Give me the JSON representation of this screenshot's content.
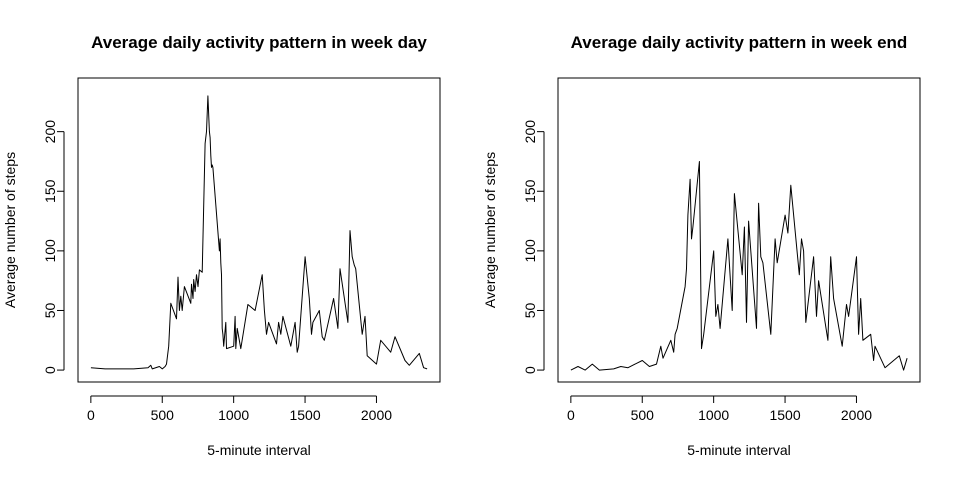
{
  "chart_data": [
    {
      "type": "line",
      "title": "Average daily activity pattern in week day",
      "xlabel": "5-minute interval",
      "ylabel": "Average number of steps",
      "xlim": [
        -90,
        2445
      ],
      "ylim": [
        -10,
        245
      ],
      "xticks": [
        0,
        500,
        1000,
        1500,
        2000
      ],
      "yticks": [
        0,
        50,
        100,
        150,
        200
      ],
      "grid": false,
      "x": [
        0,
        100,
        200,
        300,
        400,
        420,
        430,
        480,
        500,
        520,
        530,
        545,
        560,
        600,
        610,
        620,
        630,
        640,
        655,
        700,
        705,
        715,
        720,
        730,
        740,
        750,
        760,
        780,
        800,
        810,
        820,
        830,
        835,
        840,
        845,
        850,
        855,
        900,
        905,
        910,
        915,
        920,
        925,
        930,
        945,
        950,
        1000,
        1010,
        1015,
        1025,
        1050,
        1100,
        1150,
        1200,
        1215,
        1230,
        1245,
        1300,
        1315,
        1330,
        1345,
        1400,
        1430,
        1445,
        1455,
        1500,
        1530,
        1545,
        1555,
        1600,
        1620,
        1635,
        1700,
        1730,
        1745,
        1800,
        1815,
        1830,
        1845,
        1855,
        1900,
        1920,
        1935,
        2000,
        2030,
        2100,
        2130,
        2200,
        2230,
        2300,
        2330,
        2355
      ],
      "y": [
        2,
        1,
        1,
        1,
        2,
        4,
        1,
        3,
        1,
        3,
        5,
        20,
        56,
        43,
        78,
        50,
        62,
        50,
        70,
        56,
        72,
        60,
        76,
        66,
        80,
        70,
        84,
        82,
        190,
        200,
        230,
        200,
        195,
        180,
        170,
        172,
        170,
        100,
        110,
        90,
        80,
        35,
        30,
        20,
        40,
        18,
        20,
        45,
        18,
        35,
        18,
        55,
        50,
        80,
        50,
        30,
        40,
        22,
        40,
        30,
        45,
        20,
        40,
        15,
        20,
        95,
        60,
        30,
        40,
        50,
        28,
        25,
        60,
        35,
        85,
        40,
        117,
        95,
        88,
        85,
        30,
        45,
        12,
        5,
        25,
        15,
        28,
        8,
        4,
        14,
        2,
        1
      ]
    },
    {
      "type": "line",
      "title": "Average daily activity pattern in week end",
      "xlabel": "5-minute interval",
      "ylabel": "Average number of steps",
      "xlim": [
        -90,
        2445
      ],
      "ylim": [
        -10,
        245
      ],
      "xticks": [
        0,
        500,
        1000,
        1500,
        2000
      ],
      "yticks": [
        0,
        50,
        100,
        150,
        200
      ],
      "grid": false,
      "x": [
        0,
        50,
        100,
        150,
        200,
        300,
        350,
        400,
        450,
        500,
        550,
        600,
        630,
        645,
        700,
        720,
        730,
        745,
        800,
        810,
        820,
        835,
        845,
        855,
        900,
        915,
        930,
        1000,
        1015,
        1030,
        1045,
        1100,
        1130,
        1145,
        1200,
        1215,
        1230,
        1245,
        1300,
        1315,
        1330,
        1345,
        1400,
        1430,
        1445,
        1500,
        1520,
        1540,
        1600,
        1615,
        1630,
        1645,
        1700,
        1720,
        1735,
        1800,
        1820,
        1840,
        1900,
        1930,
        1945,
        2000,
        2015,
        2030,
        2045,
        2100,
        2120,
        2130,
        2200,
        2230,
        2300,
        2330,
        2355
      ],
      "y": [
        0,
        3,
        0,
        5,
        0,
        1,
        3,
        2,
        5,
        8,
        3,
        5,
        20,
        10,
        25,
        15,
        30,
        35,
        70,
        85,
        130,
        160,
        110,
        120,
        175,
        18,
        30,
        100,
        45,
        55,
        35,
        110,
        50,
        148,
        80,
        120,
        40,
        125,
        35,
        140,
        95,
        90,
        30,
        110,
        90,
        130,
        115,
        155,
        80,
        110,
        100,
        40,
        95,
        45,
        75,
        25,
        95,
        60,
        20,
        55,
        45,
        95,
        30,
        60,
        25,
        30,
        8,
        20,
        2,
        5,
        12,
        0,
        10
      ]
    }
  ]
}
